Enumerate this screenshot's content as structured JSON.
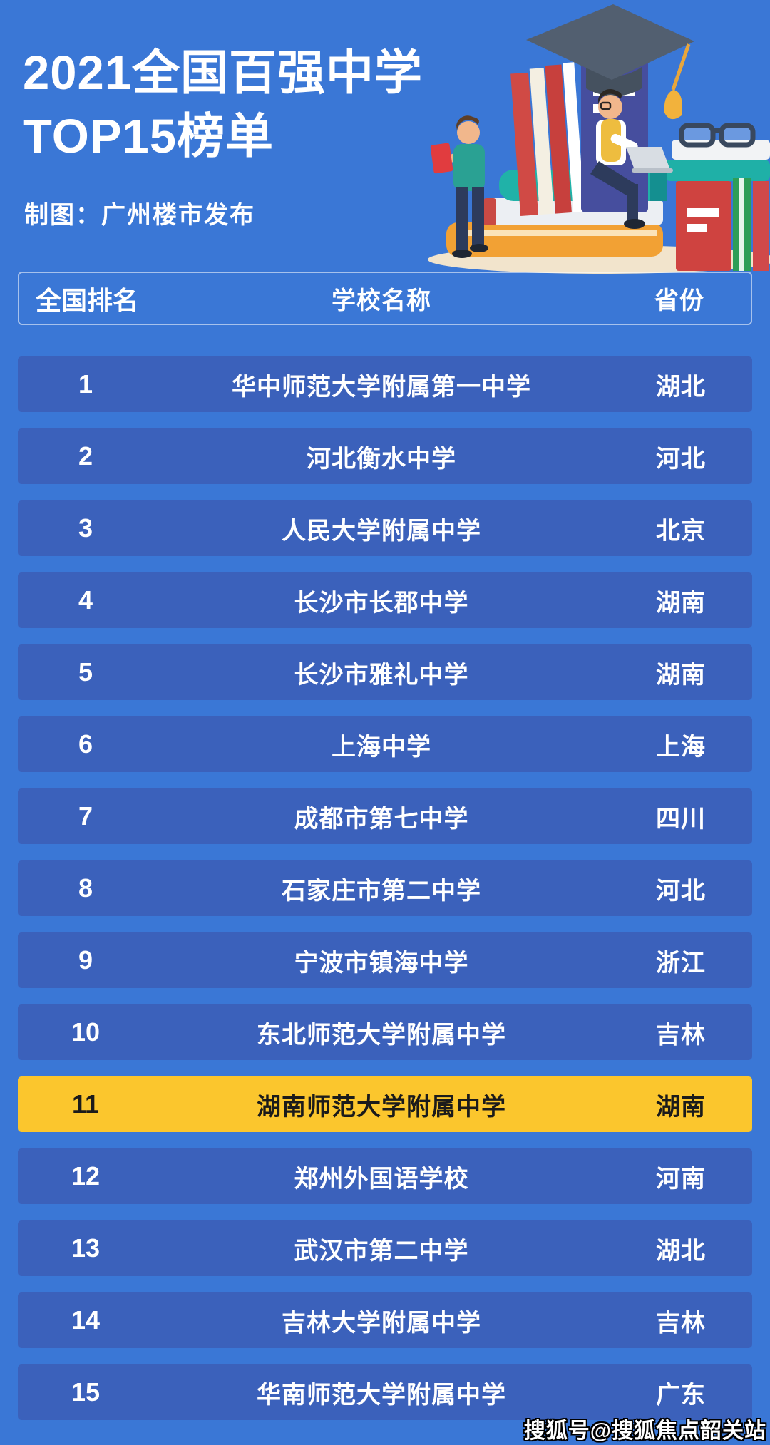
{
  "page": {
    "background_color": "#3a77d6",
    "row_color": "#3b61bb",
    "highlight_row_color": "#fbc62d",
    "text_color": "#ffffff",
    "highlight_text_color": "#1b1b1b"
  },
  "header": {
    "title_line1": "2021全国百强中学",
    "title_line2": "TOP15榜单",
    "subtitle": "制图：广州楼市发布"
  },
  "illustration": {
    "name": "students-reading-on-book-stack",
    "elements": [
      "graduation-cap-icon",
      "tassel",
      "standing-book-spines",
      "big-indigo-book",
      "horizontal-book-stack",
      "eyeglasses-icon",
      "sitting-student-with-laptop",
      "standing-student-with-red-book",
      "ground-ellipse"
    ],
    "colors": {
      "ground": "#f2e4cc",
      "cap": "#525f70",
      "tassel": "#f2b23c",
      "teal_book": "#20b2a8",
      "orange_book": "#f2a134",
      "red_book": "#cf4340",
      "indigo_book": "#464e9e",
      "green_book": "#2f9e57",
      "skin": "#f1b78c",
      "vest": "#eebd3f",
      "shirt_teal": "#2aa193",
      "pants": "#2d3b5c",
      "laptop": "#d8dde3"
    }
  },
  "table": {
    "columns": [
      "全国排名",
      "学校名称",
      "省份"
    ],
    "rows": [
      {
        "rank": "1",
        "school": "华中师范大学附属第一中学",
        "province": "湖北",
        "highlighted": false
      },
      {
        "rank": "2",
        "school": "河北衡水中学",
        "province": "河北",
        "highlighted": false
      },
      {
        "rank": "3",
        "school": "人民大学附属中学",
        "province": "北京",
        "highlighted": false
      },
      {
        "rank": "4",
        "school": "长沙市长郡中学",
        "province": "湖南",
        "highlighted": false
      },
      {
        "rank": "5",
        "school": "长沙市雅礼中学",
        "province": "湖南",
        "highlighted": false
      },
      {
        "rank": "6",
        "school": "上海中学",
        "province": "上海",
        "highlighted": false
      },
      {
        "rank": "7",
        "school": "成都市第七中学",
        "province": "四川",
        "highlighted": false
      },
      {
        "rank": "8",
        "school": "石家庄市第二中学",
        "province": "河北",
        "highlighted": false
      },
      {
        "rank": "9",
        "school": "宁波市镇海中学",
        "province": "浙江",
        "highlighted": false
      },
      {
        "rank": "10",
        "school": "东北师范大学附属中学",
        "province": "吉林",
        "highlighted": false
      },
      {
        "rank": "11",
        "school": "湖南师范大学附属中学",
        "province": "湖南",
        "highlighted": true
      },
      {
        "rank": "12",
        "school": "郑州外国语学校",
        "province": "河南",
        "highlighted": false
      },
      {
        "rank": "13",
        "school": "武汉市第二中学",
        "province": "湖北",
        "highlighted": false
      },
      {
        "rank": "14",
        "school": "吉林大学附属中学",
        "province": "吉林",
        "highlighted": false
      },
      {
        "rank": "15",
        "school": "华南师范大学附属中学",
        "province": "广东",
        "highlighted": false
      }
    ]
  },
  "watermark": "搜狐号@搜狐焦点韶关站",
  "chart_data": {
    "type": "table",
    "title": "2021全国百强中学TOP15榜单",
    "subtitle": "制图：广州楼市发布",
    "columns": [
      "全国排名",
      "学校名称",
      "省份"
    ],
    "rows": [
      [
        1,
        "华中师范大学附属第一中学",
        "湖北"
      ],
      [
        2,
        "河北衡水中学",
        "河北"
      ],
      [
        3,
        "人民大学附属中学",
        "北京"
      ],
      [
        4,
        "长沙市长郡中学",
        "湖南"
      ],
      [
        5,
        "长沙市雅礼中学",
        "湖南"
      ],
      [
        6,
        "上海中学",
        "上海"
      ],
      [
        7,
        "成都市第七中学",
        "四川"
      ],
      [
        8,
        "石家庄市第二中学",
        "河北"
      ],
      [
        9,
        "宁波市镇海中学",
        "浙江"
      ],
      [
        10,
        "东北师范大学附属中学",
        "吉林"
      ],
      [
        11,
        "湖南师范大学附属中学",
        "湖南"
      ],
      [
        12,
        "郑州外国语学校",
        "河南"
      ],
      [
        13,
        "武汉市第二中学",
        "湖北"
      ],
      [
        14,
        "吉林大学附属中学",
        "吉林"
      ],
      [
        15,
        "华南师范大学附属中学",
        "广东"
      ]
    ],
    "highlighted_rank": 11,
    "highlight_color": "#fbc62d"
  }
}
